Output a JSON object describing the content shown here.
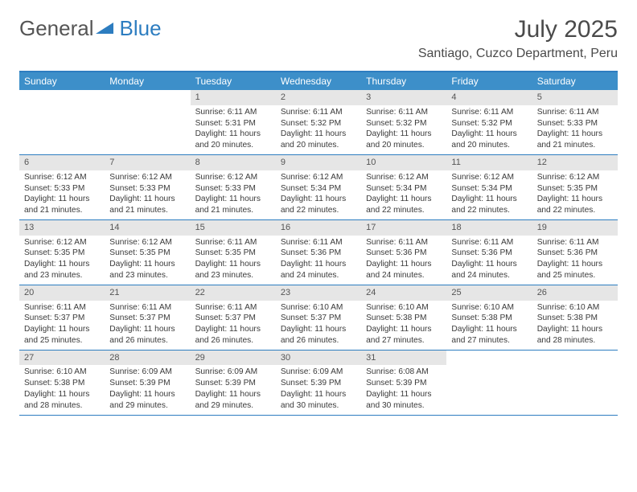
{
  "brand": {
    "word1": "General",
    "word2": "Blue"
  },
  "title": "July 2025",
  "location": "Santiago, Cuzco Department, Peru",
  "colors": {
    "accent": "#3d8fc9",
    "accent_border": "#2d7dc0",
    "daynum_bg": "#e6e6e6",
    "text": "#3a3a3a",
    "background": "#ffffff"
  },
  "day_labels": [
    "Sunday",
    "Monday",
    "Tuesday",
    "Wednesday",
    "Thursday",
    "Friday",
    "Saturday"
  ],
  "weeks": [
    [
      null,
      null,
      {
        "d": "1",
        "sr": "6:11 AM",
        "ss": "5:31 PM",
        "dl": "11 hours and 20 minutes."
      },
      {
        "d": "2",
        "sr": "6:11 AM",
        "ss": "5:32 PM",
        "dl": "11 hours and 20 minutes."
      },
      {
        "d": "3",
        "sr": "6:11 AM",
        "ss": "5:32 PM",
        "dl": "11 hours and 20 minutes."
      },
      {
        "d": "4",
        "sr": "6:11 AM",
        "ss": "5:32 PM",
        "dl": "11 hours and 20 minutes."
      },
      {
        "d": "5",
        "sr": "6:11 AM",
        "ss": "5:33 PM",
        "dl": "11 hours and 21 minutes."
      }
    ],
    [
      {
        "d": "6",
        "sr": "6:12 AM",
        "ss": "5:33 PM",
        "dl": "11 hours and 21 minutes."
      },
      {
        "d": "7",
        "sr": "6:12 AM",
        "ss": "5:33 PM",
        "dl": "11 hours and 21 minutes."
      },
      {
        "d": "8",
        "sr": "6:12 AM",
        "ss": "5:33 PM",
        "dl": "11 hours and 21 minutes."
      },
      {
        "d": "9",
        "sr": "6:12 AM",
        "ss": "5:34 PM",
        "dl": "11 hours and 22 minutes."
      },
      {
        "d": "10",
        "sr": "6:12 AM",
        "ss": "5:34 PM",
        "dl": "11 hours and 22 minutes."
      },
      {
        "d": "11",
        "sr": "6:12 AM",
        "ss": "5:34 PM",
        "dl": "11 hours and 22 minutes."
      },
      {
        "d": "12",
        "sr": "6:12 AM",
        "ss": "5:35 PM",
        "dl": "11 hours and 22 minutes."
      }
    ],
    [
      {
        "d": "13",
        "sr": "6:12 AM",
        "ss": "5:35 PM",
        "dl": "11 hours and 23 minutes."
      },
      {
        "d": "14",
        "sr": "6:12 AM",
        "ss": "5:35 PM",
        "dl": "11 hours and 23 minutes."
      },
      {
        "d": "15",
        "sr": "6:11 AM",
        "ss": "5:35 PM",
        "dl": "11 hours and 23 minutes."
      },
      {
        "d": "16",
        "sr": "6:11 AM",
        "ss": "5:36 PM",
        "dl": "11 hours and 24 minutes."
      },
      {
        "d": "17",
        "sr": "6:11 AM",
        "ss": "5:36 PM",
        "dl": "11 hours and 24 minutes."
      },
      {
        "d": "18",
        "sr": "6:11 AM",
        "ss": "5:36 PM",
        "dl": "11 hours and 24 minutes."
      },
      {
        "d": "19",
        "sr": "6:11 AM",
        "ss": "5:36 PM",
        "dl": "11 hours and 25 minutes."
      }
    ],
    [
      {
        "d": "20",
        "sr": "6:11 AM",
        "ss": "5:37 PM",
        "dl": "11 hours and 25 minutes."
      },
      {
        "d": "21",
        "sr": "6:11 AM",
        "ss": "5:37 PM",
        "dl": "11 hours and 26 minutes."
      },
      {
        "d": "22",
        "sr": "6:11 AM",
        "ss": "5:37 PM",
        "dl": "11 hours and 26 minutes."
      },
      {
        "d": "23",
        "sr": "6:10 AM",
        "ss": "5:37 PM",
        "dl": "11 hours and 26 minutes."
      },
      {
        "d": "24",
        "sr": "6:10 AM",
        "ss": "5:38 PM",
        "dl": "11 hours and 27 minutes."
      },
      {
        "d": "25",
        "sr": "6:10 AM",
        "ss": "5:38 PM",
        "dl": "11 hours and 27 minutes."
      },
      {
        "d": "26",
        "sr": "6:10 AM",
        "ss": "5:38 PM",
        "dl": "11 hours and 28 minutes."
      }
    ],
    [
      {
        "d": "27",
        "sr": "6:10 AM",
        "ss": "5:38 PM",
        "dl": "11 hours and 28 minutes."
      },
      {
        "d": "28",
        "sr": "6:09 AM",
        "ss": "5:39 PM",
        "dl": "11 hours and 29 minutes."
      },
      {
        "d": "29",
        "sr": "6:09 AM",
        "ss": "5:39 PM",
        "dl": "11 hours and 29 minutes."
      },
      {
        "d": "30",
        "sr": "6:09 AM",
        "ss": "5:39 PM",
        "dl": "11 hours and 30 minutes."
      },
      {
        "d": "31",
        "sr": "6:08 AM",
        "ss": "5:39 PM",
        "dl": "11 hours and 30 minutes."
      },
      null,
      null
    ]
  ],
  "labels": {
    "sunrise_prefix": "Sunrise: ",
    "sunset_prefix": "Sunset: ",
    "daylight_prefix": "Daylight: "
  }
}
